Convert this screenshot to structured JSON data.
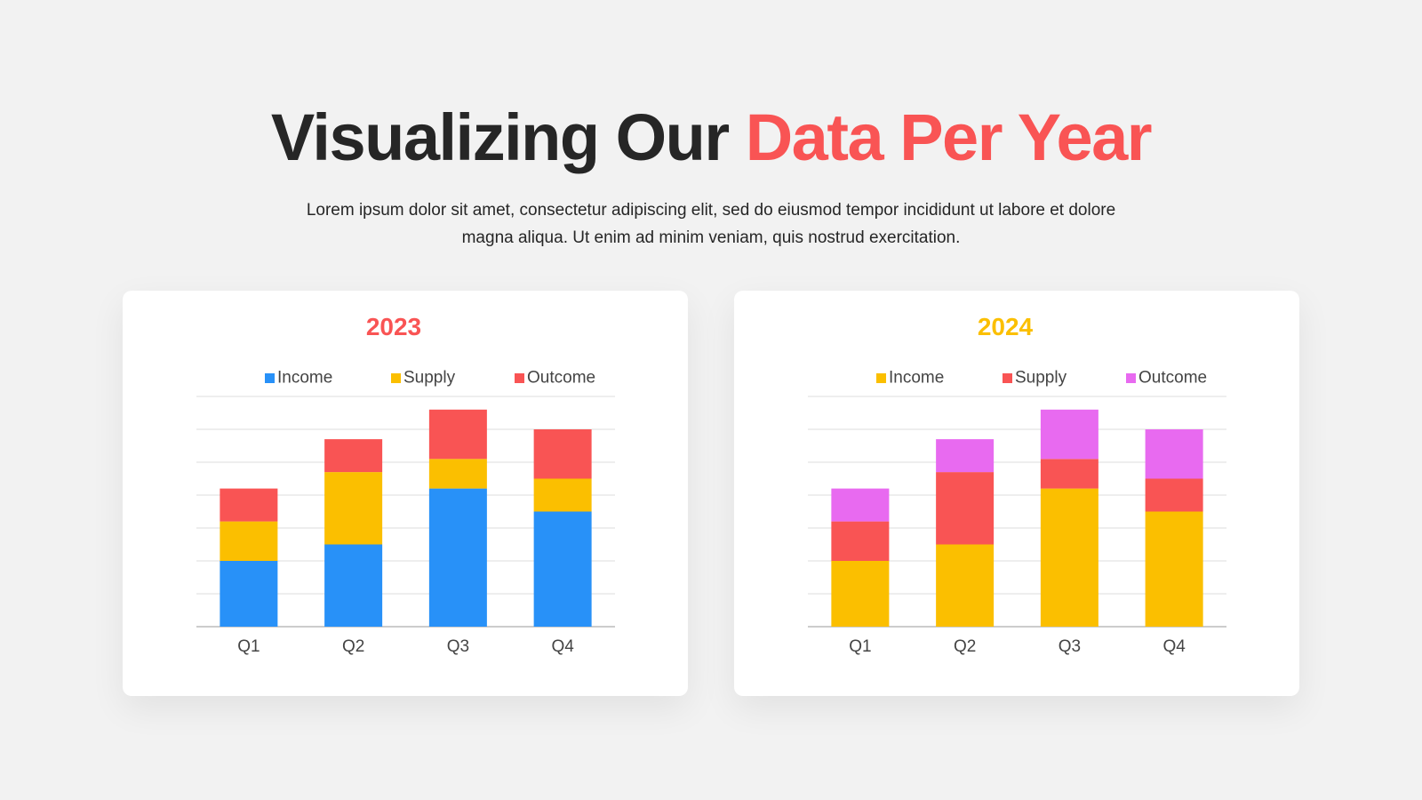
{
  "header": {
    "title_main": "Visualizing Our",
    "title_accent": "Data Per Year",
    "subtitle": "Lorem ipsum dolor sit amet, consectetur adipiscing elit, sed do eiusmod tempor incididunt ut labore et dolore magna aliqua. Ut enim ad minim veniam, quis nostrud exercitation."
  },
  "colors": {
    "accent": "#f95454",
    "title_2023": "#f95454",
    "title_2024": "#fbbf00"
  },
  "chart_data": [
    {
      "type": "bar",
      "stacked": true,
      "title": "2023",
      "categories": [
        "Q1",
        "Q2",
        "Q3",
        "Q4"
      ],
      "series": [
        {
          "name": "Income",
          "color": "#2891f8",
          "values": [
            2,
            2.5,
            4.2,
            3.5
          ]
        },
        {
          "name": "Supply",
          "color": "#fbbf00",
          "values": [
            1.2,
            2.2,
            0.9,
            1
          ]
        },
        {
          "name": "Outcome",
          "color": "#f95454",
          "values": [
            1,
            1,
            1.5,
            1.5
          ]
        }
      ],
      "ylim": [
        0,
        7
      ],
      "grid": true,
      "legend": "top"
    },
    {
      "type": "bar",
      "stacked": true,
      "title": "2024",
      "categories": [
        "Q1",
        "Q2",
        "Q3",
        "Q4"
      ],
      "series": [
        {
          "name": "Income",
          "color": "#fbbf00",
          "values": [
            2,
            2.5,
            4.2,
            3.5
          ]
        },
        {
          "name": "Supply",
          "color": "#f95454",
          "values": [
            1.2,
            2.2,
            0.9,
            1
          ]
        },
        {
          "name": "Outcome",
          "color": "#e86af0",
          "values": [
            1,
            1,
            1.5,
            1.5
          ]
        }
      ],
      "ylim": [
        0,
        7
      ],
      "grid": true,
      "legend": "top"
    }
  ]
}
